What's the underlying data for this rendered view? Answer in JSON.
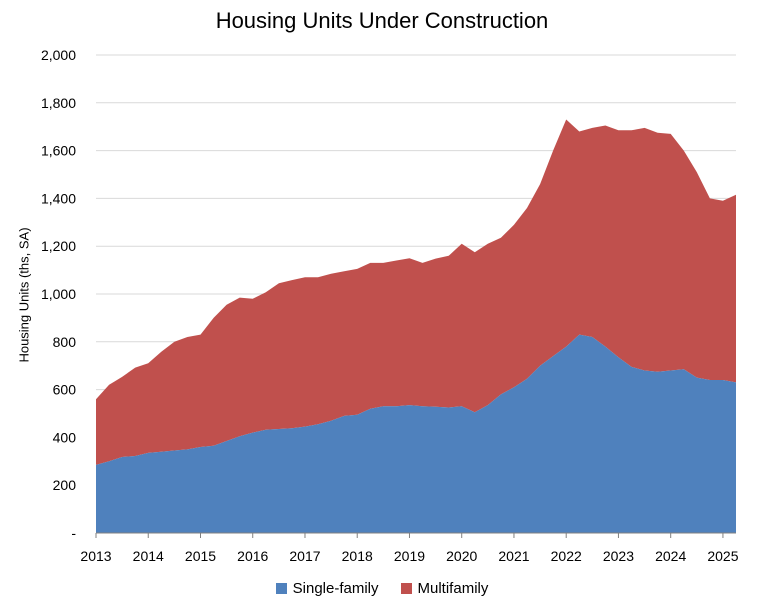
{
  "chart_data": {
    "type": "area",
    "title": "Housing Units Under Construction",
    "ylabel": "Housing Units (ths, SA)",
    "xlabel": "",
    "stacked": true,
    "ylim": [
      0,
      2000
    ],
    "xlim": [
      2013,
      2025.25
    ],
    "y_ticks": [
      0,
      200,
      400,
      600,
      800,
      1000,
      1200,
      1400,
      1600,
      1800,
      2000
    ],
    "y_tick_labels": [
      "-",
      "200",
      "400",
      "600",
      "800",
      "1,000",
      "1,200",
      "1,400",
      "1,600",
      "1,800",
      "2,000"
    ],
    "x_ticks": [
      2013,
      2014,
      2015,
      2016,
      2017,
      2018,
      2019,
      2020,
      2021,
      2022,
      2023,
      2024,
      2025
    ],
    "x_tick_labels": [
      "2013",
      "2014",
      "2015",
      "2016",
      "2017",
      "2018",
      "2019",
      "2020",
      "2021",
      "2022",
      "2023",
      "2024",
      "2025"
    ],
    "grid": "horizontal",
    "legend_position": "bottom",
    "x": [
      2013.0,
      2013.25,
      2013.5,
      2013.75,
      2014.0,
      2014.25,
      2014.5,
      2014.75,
      2015.0,
      2015.25,
      2015.5,
      2015.75,
      2016.0,
      2016.25,
      2016.5,
      2016.75,
      2017.0,
      2017.25,
      2017.5,
      2017.75,
      2018.0,
      2018.25,
      2018.5,
      2018.75,
      2019.0,
      2019.25,
      2019.5,
      2019.75,
      2020.0,
      2020.25,
      2020.5,
      2020.75,
      2021.0,
      2021.25,
      2021.5,
      2021.75,
      2022.0,
      2022.25,
      2022.5,
      2022.75,
      2023.0,
      2023.25,
      2023.5,
      2023.75,
      2024.0,
      2024.25,
      2024.5,
      2024.75,
      2025.0,
      2025.25
    ],
    "series": [
      {
        "name": "Single-family",
        "color": "#4F81BD",
        "values": [
          285,
          300,
          318,
          322,
          335,
          340,
          345,
          350,
          360,
          365,
          385,
          405,
          420,
          432,
          435,
          438,
          445,
          455,
          470,
          490,
          495,
          520,
          530,
          530,
          535,
          530,
          528,
          525,
          530,
          505,
          535,
          580,
          610,
          645,
          700,
          740,
          780,
          830,
          820,
          780,
          735,
          695,
          680,
          675,
          680,
          685,
          650,
          640,
          640,
          630
        ]
      },
      {
        "name": "Multifamily",
        "color": "#C0504D",
        "values": [
          275,
          320,
          335,
          370,
          375,
          418,
          455,
          470,
          470,
          535,
          570,
          580,
          560,
          575,
          610,
          620,
          625,
          615,
          615,
          605,
          610,
          610,
          600,
          610,
          615,
          600,
          620,
          635,
          680,
          670,
          675,
          655,
          680,
          715,
          760,
          860,
          950,
          850,
          875,
          925,
          950,
          990,
          1015,
          1000,
          990,
          915,
          860,
          760,
          750,
          785
        ]
      }
    ]
  }
}
